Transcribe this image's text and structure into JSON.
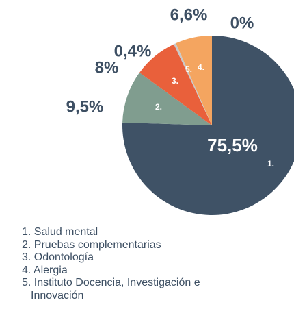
{
  "chart_data": {
    "type": "pie",
    "values": [
      75.5,
      9.5,
      8,
      0.4,
      6.6,
      0
    ],
    "value_labels": [
      "75,5%",
      "9,5%",
      "8%",
      "0,4%",
      "6,6%",
      "0%"
    ],
    "slice_labels": [
      "1.",
      "2.",
      "3.",
      "5.",
      "4.",
      null
    ],
    "colors": [
      "#3f5266",
      "#809d8f",
      "#e9603b",
      "#c9c9c9",
      "#f4a560",
      "#f4a560"
    ],
    "legend": [
      "1. Salud mental",
      "2. Pruebas complementarias",
      "3. Odontología",
      "4. Alergia",
      "5. Instituto Docencia, Investigación e Innovación"
    ]
  }
}
